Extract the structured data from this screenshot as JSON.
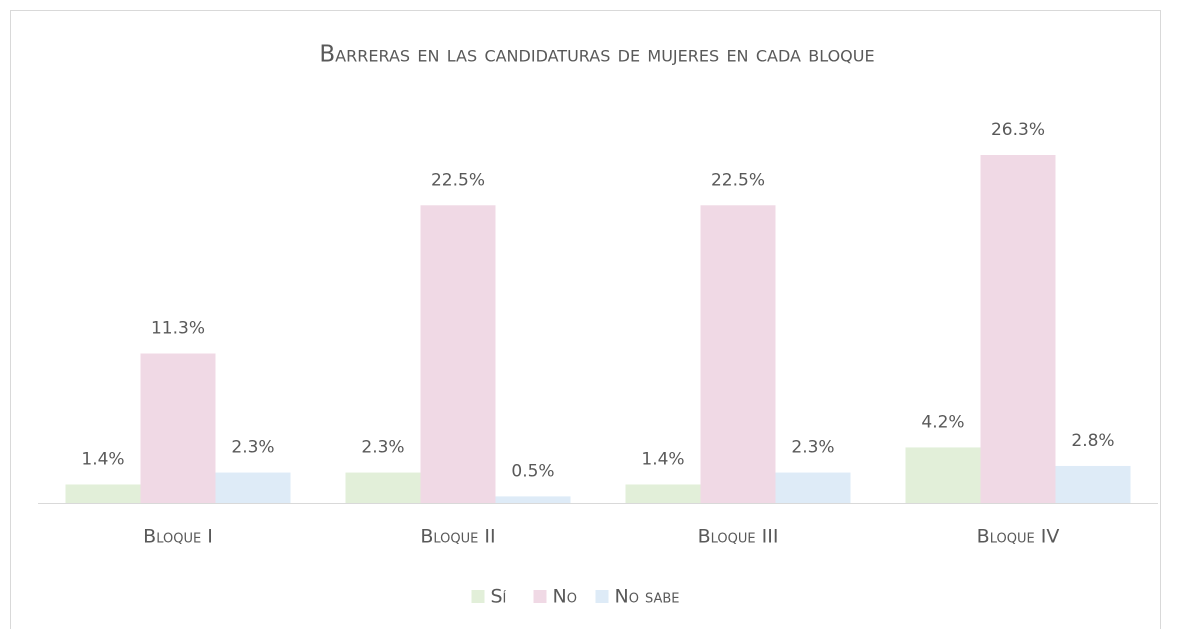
{
  "chart_data": {
    "type": "bar",
    "title": "Barreras en las candidaturas de mujeres en cada bloque",
    "categories": [
      "Bloque I",
      "Bloque II",
      "Bloque III",
      "Bloque IV"
    ],
    "series": [
      {
        "name": "Sí",
        "color": "#e2efd9",
        "values": [
          1.4,
          2.3,
          1.4,
          4.2
        ],
        "value_labels": [
          "1.4%",
          "2.3%",
          "1.4%",
          "4.2%"
        ]
      },
      {
        "name": "No",
        "color": "#f0d9e5",
        "values": [
          11.3,
          22.5,
          22.5,
          26.3
        ],
        "value_labels": [
          "11.3%",
          "22.5%",
          "22.5%",
          "26.3%"
        ]
      },
      {
        "name": "No sabe",
        "color": "#deebf7",
        "values": [
          2.3,
          0.5,
          2.3,
          2.8
        ],
        "value_labels": [
          "2.3%",
          "0.5%",
          "2.3%",
          "2.8%"
        ]
      }
    ],
    "legend": "bottom"
  }
}
